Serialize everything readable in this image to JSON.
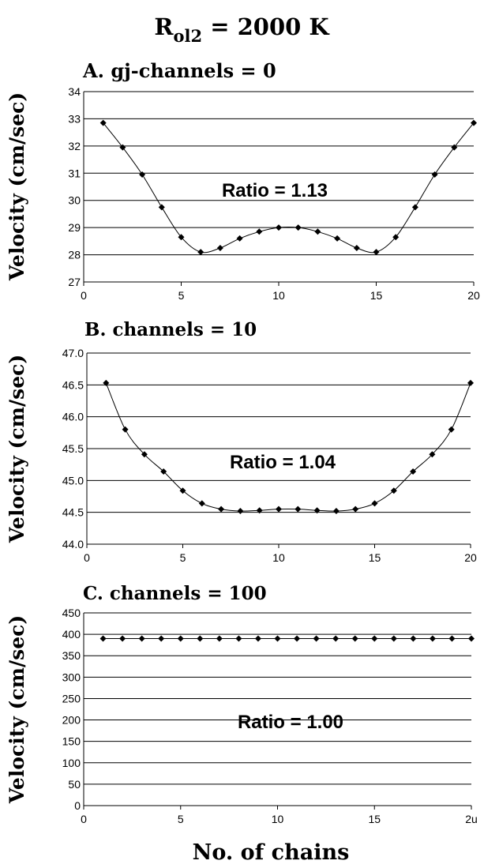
{
  "figure": {
    "title_main": "R",
    "title_sub": "ol2",
    "title_rest": " = 2000 K",
    "xlabel": "No. of chains"
  },
  "chart_data": [
    {
      "type": "line",
      "title": "A. gj-channels = 0",
      "ylabel": "Velocity (cm/sec)",
      "ylim": [
        27,
        34
      ],
      "xlim": [
        0,
        20
      ],
      "yticks": [
        "27",
        "28",
        "29",
        "30",
        "31",
        "32",
        "33",
        "34"
      ],
      "xticks": [
        "0",
        "5",
        "10",
        "15",
        "20"
      ],
      "grid": true,
      "annotation": "Ratio = 1.13",
      "x": [
        1,
        2,
        3,
        4,
        5,
        6,
        7,
        8,
        9,
        10,
        11,
        12,
        13,
        14,
        15,
        16,
        17,
        18,
        19,
        20
      ],
      "values": [
        32.85,
        31.95,
        30.95,
        29.75,
        28.65,
        28.1,
        28.25,
        28.6,
        28.85,
        29.0,
        29.0,
        28.85,
        28.6,
        28.25,
        28.1,
        28.65,
        29.75,
        30.95,
        31.95,
        32.85
      ]
    },
    {
      "type": "line",
      "title": "B. channels = 10",
      "ylabel": "Velocity (cm/sec)",
      "ylim": [
        44.0,
        47.0
      ],
      "xlim": [
        0,
        20
      ],
      "yticks": [
        "44.0",
        "44.5",
        "45.0",
        "45.5",
        "46.0",
        "46.5",
        "47.0"
      ],
      "xticks": [
        "0",
        "5",
        "10",
        "15",
        "20"
      ],
      "grid": true,
      "annotation": "Ratio = 1.04",
      "x": [
        1,
        2,
        3,
        4,
        5,
        6,
        7,
        8,
        9,
        10,
        11,
        12,
        13,
        14,
        15,
        16,
        17,
        18,
        19,
        20
      ],
      "values": [
        46.53,
        45.8,
        45.41,
        45.14,
        44.84,
        44.64,
        44.55,
        44.52,
        44.53,
        44.55,
        44.55,
        44.53,
        44.52,
        44.55,
        44.64,
        44.84,
        45.14,
        45.41,
        45.8,
        46.53
      ]
    },
    {
      "type": "line",
      "title": "C. channels = 100",
      "ylabel": "Velocity (cm/sec)",
      "ylim": [
        0,
        450
      ],
      "xlim": [
        0,
        20
      ],
      "yticks": [
        "0",
        "50",
        "100",
        "150",
        "200",
        "250",
        "300",
        "350",
        "400",
        "450"
      ],
      "xticks": [
        "0",
        "5",
        "10",
        "15",
        "2u"
      ],
      "grid": true,
      "annotation": "Ratio = 1.00",
      "x": [
        1,
        2,
        3,
        4,
        5,
        6,
        7,
        8,
        9,
        10,
        11,
        12,
        13,
        14,
        15,
        16,
        17,
        18,
        19,
        20
      ],
      "values": [
        390,
        390,
        390,
        390,
        390,
        390,
        390,
        390,
        390,
        390,
        390,
        390,
        390,
        390,
        390,
        390,
        390,
        390,
        390,
        390
      ]
    }
  ]
}
